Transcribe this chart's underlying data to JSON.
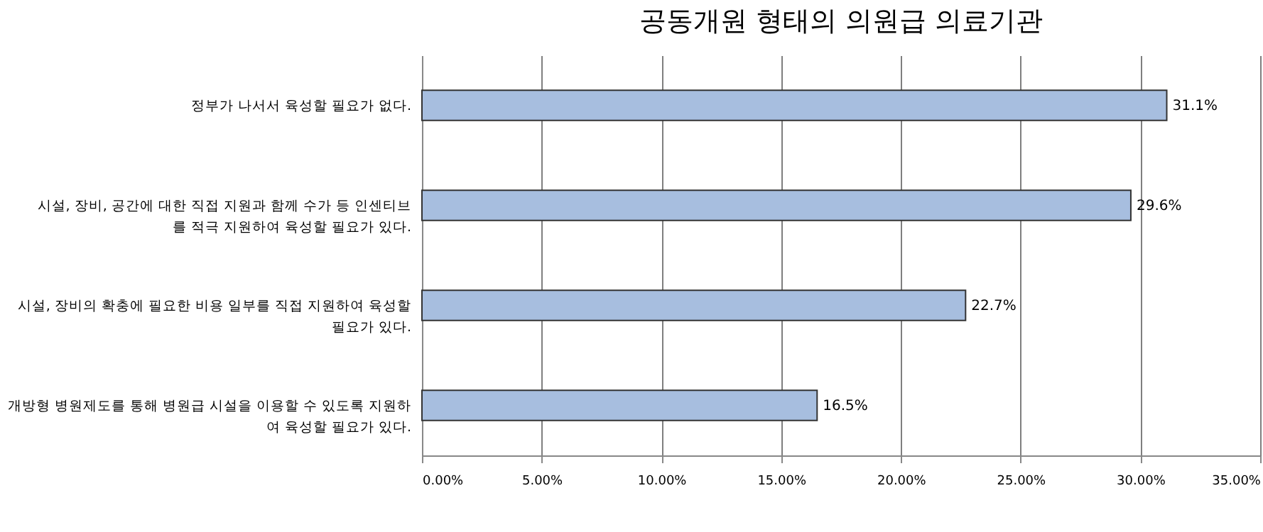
{
  "chart_data": {
    "type": "bar",
    "orientation": "horizontal",
    "title": "공동개원 형태의 의원급 의료기관",
    "categories": [
      "정부가 나서서 육성할 필요가 없다.",
      "시설, 장비, 공간에 대한 직접 지원과 함께 수가 등 인센티브를 적극 지원하여 육성할 필요가 있다.",
      "시설, 장비의 확충에 필요한 비용 일부를 직접 지원하여 육성할 필요가 있다.",
      "개방형 병원제도를 통해 병원급 시설을 이용할 수 있도록 지원하여 육성할 필요가 있다."
    ],
    "values": [
      31.1,
      29.6,
      22.7,
      16.5
    ],
    "value_labels": [
      "31.1%",
      "29.6%",
      "22.7%",
      "16.5%"
    ],
    "color": "#a7bedf",
    "xlim": [
      0,
      35
    ],
    "xticks": [
      {
        "value": 0,
        "label": "0.00%"
      },
      {
        "value": 5,
        "label": "5.00%"
      },
      {
        "value": 10,
        "label": "10.00%"
      },
      {
        "value": 15,
        "label": "15.00%"
      },
      {
        "value": 20,
        "label": "20.00%"
      },
      {
        "value": 25,
        "label": "25.00%"
      },
      {
        "value": 30,
        "label": "30.00%"
      },
      {
        "value": 35,
        "label": "35.00%"
      }
    ],
    "grid": "x"
  }
}
